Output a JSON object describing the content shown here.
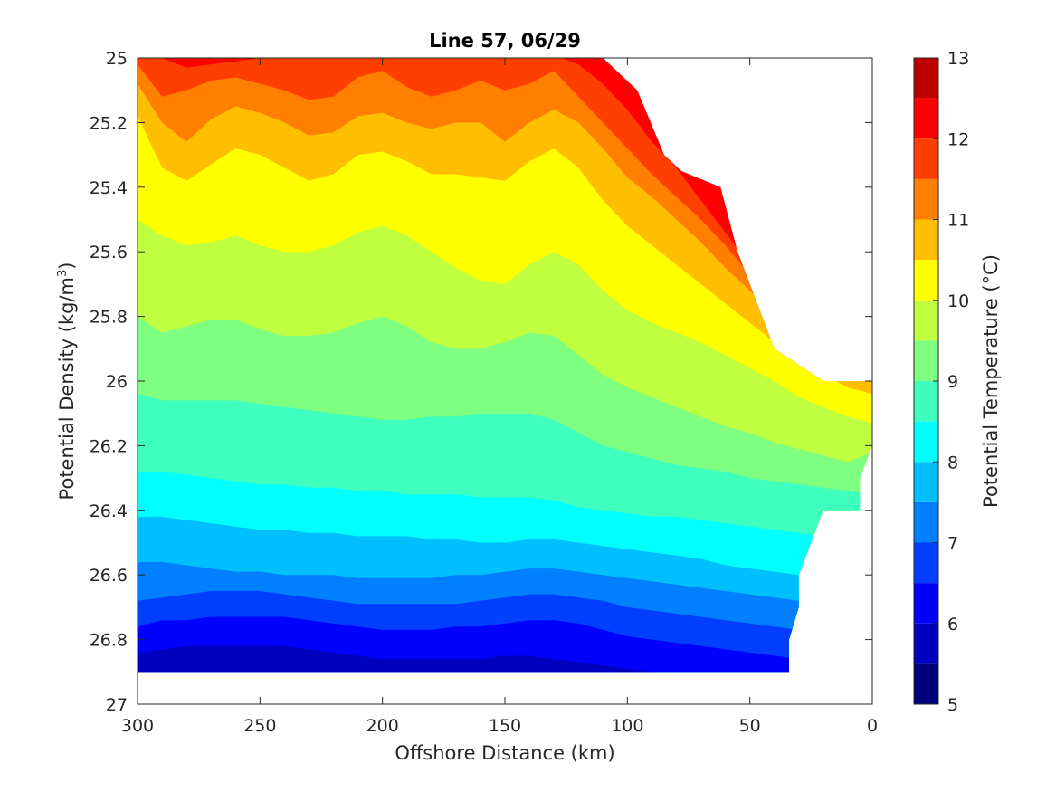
{
  "chart_data": {
    "type": "contourf",
    "title": "Line 57, 06/29",
    "xlabel": "Offshore Distance (km)",
    "ylabel": "Potential Density (kg/m",
    "ylabel_sup": "3",
    "ylabel_close": ")",
    "colorbar_label": "Potential Temperature (°C)",
    "xlim": [
      300,
      0
    ],
    "ylim": [
      27,
      25
    ],
    "x_reversed": true,
    "y_reversed": true,
    "x_ticks": [
      "300",
      "250",
      "200",
      "150",
      "100",
      "50",
      "0"
    ],
    "y_ticks": [
      "25",
      "25.2",
      "25.4",
      "25.6",
      "25.8",
      "26",
      "26.2",
      "26.4",
      "26.6",
      "26.8",
      "27"
    ],
    "colorbar_ticks": [
      "5",
      "6",
      "7",
      "8",
      "9",
      "10",
      "11",
      "12",
      "13"
    ],
    "levels": [
      5,
      5.5,
      6,
      6.5,
      7,
      7.5,
      8,
      8.5,
      9,
      9.5,
      10,
      10.5,
      11,
      11.5,
      12,
      12.5,
      13
    ],
    "colors": [
      "#00007f",
      "#0000bf",
      "#0000ff",
      "#003fff",
      "#007fff",
      "#00bfff",
      "#00ffff",
      "#3fffbf",
      "#7fff7f",
      "#bfff3f",
      "#ffff00",
      "#ffbf00",
      "#ff7f00",
      "#ff3f00",
      "#ff0000",
      "#bf0000"
    ],
    "x_stations": [
      300,
      290,
      280,
      270,
      260,
      250,
      240,
      230,
      220,
      210,
      200,
      190,
      180,
      170,
      160,
      150,
      140,
      130,
      120,
      110,
      100,
      90,
      80,
      70,
      60,
      50,
      40,
      30,
      20,
      10,
      0
    ],
    "isopycnals_of_isotherms": [
      {
        "temperature": 12.5,
        "sigma": [
          24.9,
          24.92,
          24.94,
          24.95,
          24.95,
          24.95,
          24.95,
          24.95,
          24.95,
          24.95,
          24.95,
          24.95,
          24.95,
          24.95,
          24.95,
          24.95,
          24.95,
          24.95,
          24.95,
          24.97,
          25.02,
          25.08,
          25.16,
          25.26,
          25.38,
          25.5,
          25.62,
          25.75,
          25.88,
          25.98,
          26.0
        ]
      },
      {
        "temperature": 12.0,
        "sigma": [
          24.98,
          25.0,
          25.03,
          25.02,
          25.01,
          25.0,
          24.99,
          25.0,
          25.0,
          24.99,
          24.99,
          25.0,
          24.99,
          24.99,
          25.0,
          24.99,
          24.98,
          24.99,
          25.02,
          25.08,
          25.16,
          25.26,
          25.34,
          25.44,
          25.54,
          25.64,
          25.75,
          25.86,
          25.95,
          26.0,
          26.0
        ]
      },
      {
        "temperature": 11.5,
        "sigma": [
          25.02,
          25.12,
          25.1,
          25.07,
          25.06,
          25.08,
          25.1,
          25.13,
          25.12,
          25.06,
          25.04,
          25.09,
          25.12,
          25.1,
          25.07,
          25.1,
          25.08,
          25.04,
          25.12,
          25.2,
          25.28,
          25.36,
          25.43,
          25.5,
          25.58,
          25.67,
          25.77,
          25.87,
          25.96,
          26.0,
          26.0
        ]
      },
      {
        "temperature": 11.0,
        "sigma": [
          25.08,
          25.2,
          25.26,
          25.19,
          25.15,
          25.17,
          25.2,
          25.24,
          25.23,
          25.18,
          25.17,
          25.2,
          25.22,
          25.2,
          25.2,
          25.26,
          25.2,
          25.16,
          25.2,
          25.28,
          25.37,
          25.43,
          25.5,
          25.57,
          25.65,
          25.72,
          25.8,
          25.88,
          25.96,
          26.0,
          26.0
        ]
      },
      {
        "temperature": 10.5,
        "sigma": [
          25.18,
          25.34,
          25.38,
          25.33,
          25.28,
          25.3,
          25.34,
          25.38,
          25.36,
          25.3,
          25.29,
          25.32,
          25.36,
          25.36,
          25.37,
          25.38,
          25.32,
          25.28,
          25.34,
          25.44,
          25.52,
          25.58,
          25.64,
          25.7,
          25.76,
          25.82,
          25.88,
          25.93,
          25.98,
          26.02,
          26.04
        ]
      },
      {
        "temperature": 10.0,
        "sigma": [
          25.5,
          25.55,
          25.58,
          25.57,
          25.55,
          25.58,
          25.6,
          25.6,
          25.58,
          25.54,
          25.52,
          25.55,
          25.6,
          25.65,
          25.69,
          25.7,
          25.64,
          25.6,
          25.64,
          25.72,
          25.78,
          25.82,
          25.85,
          25.88,
          25.92,
          25.96,
          26.0,
          26.05,
          26.08,
          26.11,
          26.13
        ]
      },
      {
        "temperature": 9.5,
        "sigma": [
          25.8,
          25.85,
          25.83,
          25.81,
          25.81,
          25.84,
          25.86,
          25.86,
          25.85,
          25.82,
          25.8,
          25.83,
          25.88,
          25.9,
          25.9,
          25.88,
          25.85,
          25.86,
          25.92,
          25.98,
          26.02,
          26.05,
          26.08,
          26.11,
          26.14,
          26.16,
          26.19,
          26.21,
          26.23,
          26.25,
          26.22
        ]
      },
      {
        "temperature": 9.0,
        "sigma": [
          26.04,
          26.06,
          26.06,
          26.06,
          26.06,
          26.07,
          26.08,
          26.09,
          26.1,
          26.11,
          26.12,
          26.12,
          26.11,
          26.11,
          26.1,
          26.1,
          26.1,
          26.12,
          26.16,
          26.2,
          26.22,
          26.24,
          26.26,
          26.27,
          26.28,
          26.3,
          26.31,
          26.32,
          26.33,
          26.34,
          26.35
        ]
      },
      {
        "temperature": 8.5,
        "sigma": [
          26.28,
          26.28,
          26.29,
          26.3,
          26.31,
          26.32,
          26.32,
          26.33,
          26.33,
          26.34,
          26.34,
          26.35,
          26.35,
          26.35,
          26.36,
          26.36,
          26.36,
          26.37,
          26.39,
          26.4,
          26.41,
          26.42,
          26.42,
          26.43,
          26.44,
          26.45,
          26.46,
          26.47,
          26.48,
          26.49,
          26.5
        ]
      },
      {
        "temperature": 8.0,
        "sigma": [
          26.42,
          26.42,
          26.43,
          26.44,
          26.45,
          26.46,
          26.46,
          26.47,
          26.47,
          26.48,
          26.48,
          26.48,
          26.49,
          26.49,
          26.5,
          26.5,
          26.49,
          26.49,
          26.5,
          26.51,
          26.52,
          26.53,
          26.54,
          26.55,
          26.57,
          26.58,
          26.59,
          26.6,
          26.61,
          26.62,
          26.63
        ]
      },
      {
        "temperature": 7.5,
        "sigma": [
          26.56,
          26.56,
          26.57,
          26.58,
          26.59,
          26.59,
          26.6,
          26.6,
          26.6,
          26.61,
          26.61,
          26.61,
          26.61,
          26.6,
          26.6,
          26.59,
          26.58,
          26.58,
          26.59,
          26.6,
          26.61,
          26.62,
          26.63,
          26.64,
          26.65,
          26.66,
          26.67,
          26.68,
          26.69,
          26.7,
          26.71
        ]
      },
      {
        "temperature": 7.0,
        "sigma": [
          26.68,
          26.67,
          26.66,
          26.65,
          26.65,
          26.65,
          26.66,
          26.67,
          26.68,
          26.69,
          26.69,
          26.69,
          26.69,
          26.69,
          26.68,
          26.67,
          26.66,
          26.66,
          26.67,
          26.68,
          26.7,
          26.71,
          26.72,
          26.73,
          26.74,
          26.75,
          26.76,
          26.77,
          26.78,
          26.79,
          26.8
        ]
      },
      {
        "temperature": 6.5,
        "sigma": [
          26.76,
          26.74,
          26.74,
          26.73,
          26.73,
          26.73,
          26.73,
          26.74,
          26.75,
          26.76,
          26.77,
          26.77,
          26.77,
          26.76,
          26.76,
          26.75,
          26.74,
          26.74,
          26.75,
          26.77,
          26.79,
          26.8,
          26.81,
          26.82,
          26.83,
          26.84,
          26.85,
          26.86,
          26.87,
          26.88,
          26.89
        ]
      },
      {
        "temperature": 6.0,
        "sigma": [
          26.84,
          26.83,
          26.82,
          26.82,
          26.82,
          26.82,
          26.82,
          26.83,
          26.84,
          26.85,
          26.86,
          26.86,
          26.86,
          26.86,
          26.86,
          26.85,
          26.85,
          26.86,
          26.87,
          26.88,
          26.89,
          26.9,
          26.91,
          26.92,
          26.93,
          26.94,
          26.95,
          26.96,
          26.97,
          26.98,
          26.99
        ]
      },
      {
        "temperature": 5.5,
        "sigma": [
          26.9,
          26.9,
          26.9,
          26.9,
          26.9,
          26.9,
          26.9,
          26.9,
          26.9,
          26.9,
          26.9,
          26.9,
          26.9,
          26.9,
          26.9,
          26.9,
          26.9,
          26.9,
          26.9,
          26.9,
          26.9,
          26.9,
          26.9,
          26.9,
          26.9,
          26.9,
          26.9,
          26.9,
          26.9,
          26.9,
          26.9
        ]
      }
    ],
    "data_upper_bound": [
      [
        300,
        25.0
      ],
      [
        110,
        25.0
      ],
      [
        96,
        25.1
      ],
      [
        85,
        25.3
      ],
      [
        78,
        25.35
      ],
      [
        62,
        25.4
      ],
      [
        55,
        25.6
      ],
      [
        40,
        25.9
      ],
      [
        20,
        26.0
      ],
      [
        0,
        26.0
      ]
    ],
    "data_lower_bound": [
      [
        300,
        26.9
      ],
      [
        34,
        26.9
      ],
      [
        34,
        26.8
      ],
      [
        30,
        26.7
      ],
      [
        30,
        26.6
      ],
      [
        20,
        26.4
      ],
      [
        5,
        26.4
      ],
      [
        5,
        26.3
      ],
      [
        0,
        26.2
      ]
    ]
  }
}
